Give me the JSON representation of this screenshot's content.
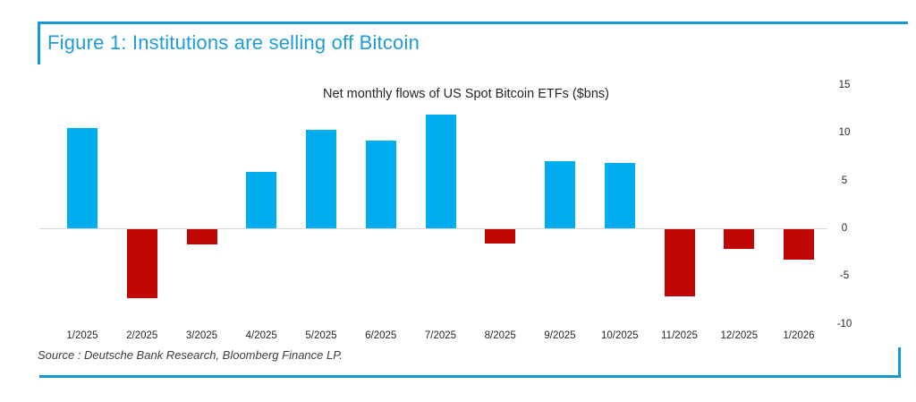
{
  "header": {
    "title": "Figure 1: Institutions are selling off Bitcoin"
  },
  "source_note": "Source : Deutsche Bank Research, Bloomberg Finance LP.",
  "colors": {
    "accent_blue": "#1798d6",
    "title_blue": "#1f9cd8",
    "bar_positive": "#00adee",
    "bar_negative": "#c00505",
    "zero_line": "#d9d9d9",
    "text_dark": "#262626"
  },
  "chart_data": {
    "type": "bar",
    "title": "Net monthly flows of US Spot Bitcoin ETFs ($bns)",
    "categories": [
      "1/2025",
      "2/2025",
      "3/2025",
      "4/2025",
      "5/2025",
      "6/2025",
      "7/2025",
      "8/2025",
      "9/2025",
      "10/2025",
      "11/2025",
      "12/2025",
      "1/2026"
    ],
    "values": [
      10.5,
      -7.2,
      -1.6,
      5.9,
      10.3,
      9.2,
      11.9,
      -1.5,
      7.0,
      6.8,
      -7.0,
      -2.1,
      -3.2
    ],
    "xlabel": "",
    "ylabel": "",
    "ylim": [
      -10,
      15
    ],
    "yticks": [
      15,
      10,
      5,
      0,
      -5,
      -10
    ],
    "grid": false,
    "legend": "none",
    "y_axis_position": "right",
    "positive_color": "#00adee",
    "negative_color": "#c00505"
  }
}
